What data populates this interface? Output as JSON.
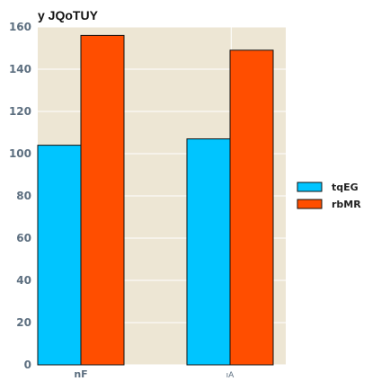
{
  "chart_data": {
    "type": "bar",
    "title": "y JQoTUY",
    "categories": [
      "nF",
      "ıA"
    ],
    "series": [
      {
        "name": "tqEG",
        "values": [
          104,
          107
        ],
        "color": "#00c5ff"
      },
      {
        "name": "rbMR",
        "values": [
          156,
          149
        ],
        "color": "#ff4e00"
      }
    ],
    "ylim": [
      0,
      160
    ],
    "yticks": [
      "0",
      "20",
      "40",
      "60",
      "80",
      "100",
      "120",
      "140",
      "160"
    ],
    "grid": true,
    "plot_background": "#ede6d4",
    "legend_position": "right"
  }
}
